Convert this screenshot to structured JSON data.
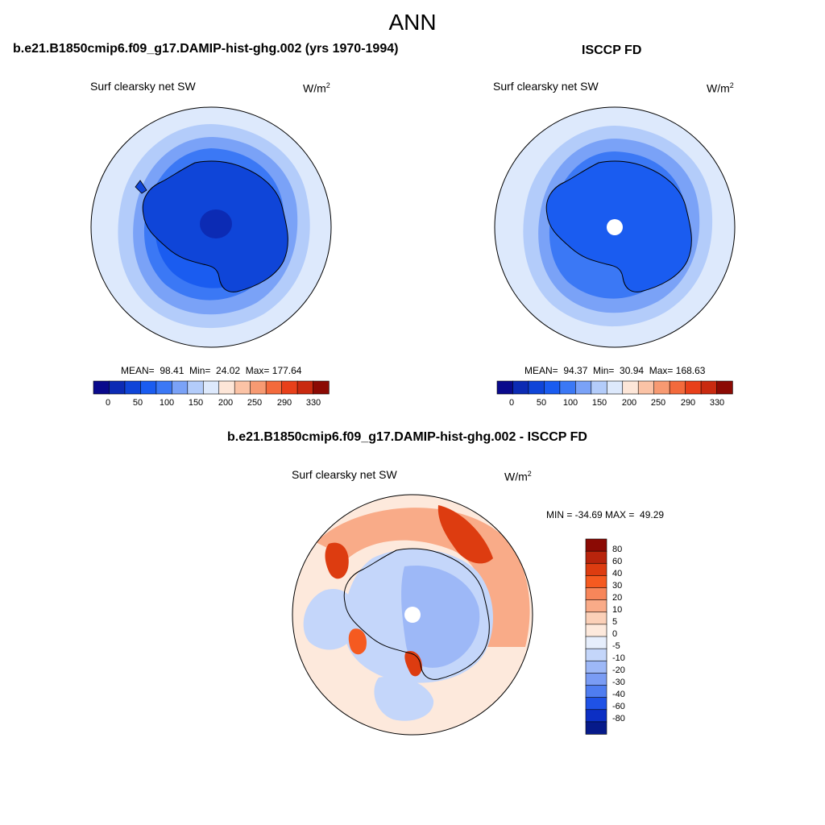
{
  "main_title": "ANN",
  "panels": [
    {
      "title": "b.e21.B1850cmip6.f09_g17.DAMIP-hist-ghg.002 (yrs 1970-1994)",
      "variable": "Surf clearsky net SW",
      "units": "W/m",
      "units_sup": "2",
      "stats": "MEAN=  98.41  Min=  24.02  Max= 177.64",
      "colorbar_ticks": [
        "0",
        "50",
        "100",
        "150",
        "200",
        "250",
        "290",
        "330"
      ]
    },
    {
      "title": "ISCCP FD",
      "variable": "Surf clearsky net SW",
      "units": "W/m",
      "units_sup": "2",
      "stats": "MEAN=  94.37  Min=  30.94  Max= 168.63",
      "colorbar_ticks": [
        "0",
        "50",
        "100",
        "150",
        "200",
        "250",
        "290",
        "330"
      ]
    }
  ],
  "diff_panel": {
    "title": "b.e21.B1850cmip6.f09_g17.DAMIP-hist-ghg.002 - ISCCP FD",
    "variable": "Surf clearsky net SW",
    "units": "W/m",
    "units_sup": "2",
    "minmax": "MIN = -34.69 MAX =  49.29",
    "colorbar_ticks": [
      "80",
      "60",
      "40",
      "30",
      "20",
      "10",
      "5",
      "0",
      "-5",
      "-10",
      "-20",
      "-30",
      "-40",
      "-60",
      "-80"
    ]
  },
  "colors": {
    "abs_scale": [
      "#0a0a8c",
      "#0c2bb4",
      "#0f45d8",
      "#1a5cf0",
      "#3b78f5",
      "#7aa2f7",
      "#b3ccfa",
      "#dde9fc",
      "#fde6d8",
      "#fbc3a6",
      "#f79a72",
      "#f36a3c",
      "#e8401a",
      "#c92a10",
      "#8b0a04"
    ],
    "diff_scale": [
      "#8b0a04",
      "#b8240c",
      "#dd3c10",
      "#f55a20",
      "#f7865a",
      "#f9ab88",
      "#fbd0b8",
      "#fde9dc",
      "#e6eefc",
      "#c4d6fa",
      "#9db8f7",
      "#7a9cf4",
      "#4f7df0",
      "#1f52e6",
      "#0c2fc4",
      "#061a8a"
    ]
  }
}
